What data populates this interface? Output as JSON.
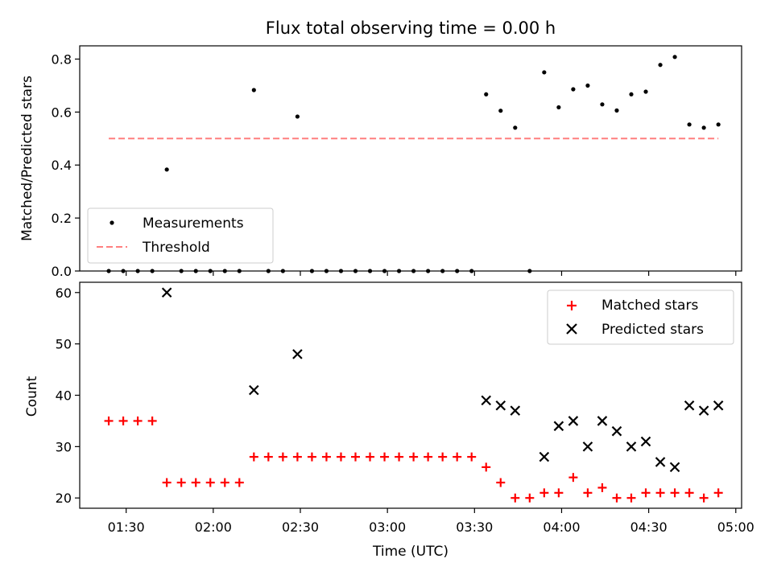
{
  "figure": {
    "title": "Flux total observing time = 0.00 h"
  },
  "chart_data": [
    {
      "type": "scatter",
      "panel": "top",
      "ylabel": "Matched/Predicted stars",
      "xlim": [
        "01:14",
        "05:02"
      ],
      "ylim": [
        0,
        0.85
      ],
      "yticks": [
        0.0,
        0.2,
        0.4,
        0.6,
        0.8
      ],
      "ytick_labels": [
        "0.0",
        "0.2",
        "0.4",
        "0.6",
        "0.8"
      ],
      "legend_placement": "lower-left",
      "series": [
        {
          "name": "Measurements",
          "kind": "scatter",
          "marker": "dot",
          "color": "#000000",
          "x": [
            "01:24",
            "01:29",
            "01:34",
            "01:39",
            "01:44",
            "01:49",
            "01:54",
            "01:59",
            "02:04",
            "02:09",
            "02:14",
            "02:19",
            "02:24",
            "02:29",
            "02:34",
            "02:39",
            "02:44",
            "02:49",
            "02:54",
            "02:59",
            "03:04",
            "03:09",
            "03:14",
            "03:19",
            "03:24",
            "03:29",
            "03:34",
            "03:39",
            "03:44",
            "03:49",
            "03:54",
            "03:59",
            "04:04",
            "04:09",
            "04:14",
            "04:19",
            "04:24",
            "04:29",
            "04:34",
            "04:39",
            "04:44",
            "04:49",
            "04:54"
          ],
          "y": [
            0,
            0,
            0,
            0,
            0.383,
            0,
            0,
            0,
            0,
            0,
            0.683,
            0,
            0,
            0.583,
            0,
            0,
            0,
            0,
            0,
            0,
            0,
            0,
            0,
            0,
            0,
            0,
            0.667,
            0.605,
            0.541,
            0,
            0.75,
            0.618,
            0.686,
            0.7,
            0.629,
            0.606,
            0.667,
            0.677,
            0.778,
            0.808,
            0.553,
            0.541,
            0.553
          ]
        },
        {
          "name": "Threshold",
          "kind": "line",
          "style": "dashed",
          "color": "#ff7f7f",
          "x": [
            "01:24",
            "04:54"
          ],
          "y": [
            0.5,
            0.5
          ]
        }
      ]
    },
    {
      "type": "scatter",
      "panel": "bottom",
      "xlabel": "Time (UTC)",
      "ylabel": "Count",
      "xlim": [
        "01:14",
        "05:02"
      ],
      "ylim": [
        18,
        62
      ],
      "yticks": [
        20,
        30,
        40,
        50,
        60
      ],
      "ytick_labels": [
        "20",
        "30",
        "40",
        "50",
        "60"
      ],
      "xticks": [
        "01:30",
        "02:00",
        "02:30",
        "03:00",
        "03:30",
        "04:00",
        "04:30",
        "05:00"
      ],
      "legend_placement": "upper-right",
      "series": [
        {
          "name": "Matched stars",
          "marker": "plus",
          "color": "#ff0000",
          "x": [
            "01:24",
            "01:29",
            "01:34",
            "01:39",
            "01:44",
            "01:49",
            "01:54",
            "01:59",
            "02:04",
            "02:09",
            "02:14",
            "02:19",
            "02:24",
            "02:29",
            "02:34",
            "02:39",
            "02:44",
            "02:49",
            "02:54",
            "02:59",
            "03:04",
            "03:09",
            "03:14",
            "03:19",
            "03:24",
            "03:29",
            "03:34",
            "03:39",
            "03:44",
            "03:49",
            "03:54",
            "03:59",
            "04:04",
            "04:09",
            "04:14",
            "04:19",
            "04:24",
            "04:29",
            "04:34",
            "04:39",
            "04:44",
            "04:49",
            "04:54"
          ],
          "y": [
            35,
            35,
            35,
            35,
            23,
            23,
            23,
            23,
            23,
            23,
            28,
            28,
            28,
            28,
            28,
            28,
            28,
            28,
            28,
            28,
            28,
            28,
            28,
            28,
            28,
            28,
            26,
            23,
            20,
            20,
            21,
            21,
            24,
            21,
            22,
            20,
            20,
            21,
            21,
            21,
            21,
            20,
            21
          ]
        },
        {
          "name": "Predicted stars",
          "marker": "x",
          "color": "#000000",
          "x": [
            "01:44",
            "02:14",
            "02:29",
            "03:34",
            "03:39",
            "03:44",
            "03:54",
            "03:59",
            "04:04",
            "04:09",
            "04:14",
            "04:19",
            "04:24",
            "04:29",
            "04:34",
            "04:39",
            "04:44",
            "04:49",
            "04:54"
          ],
          "y": [
            60,
            41,
            48,
            39,
            38,
            37,
            28,
            34,
            35,
            30,
            35,
            33,
            30,
            31,
            27,
            26,
            38,
            37,
            38
          ]
        }
      ]
    }
  ]
}
